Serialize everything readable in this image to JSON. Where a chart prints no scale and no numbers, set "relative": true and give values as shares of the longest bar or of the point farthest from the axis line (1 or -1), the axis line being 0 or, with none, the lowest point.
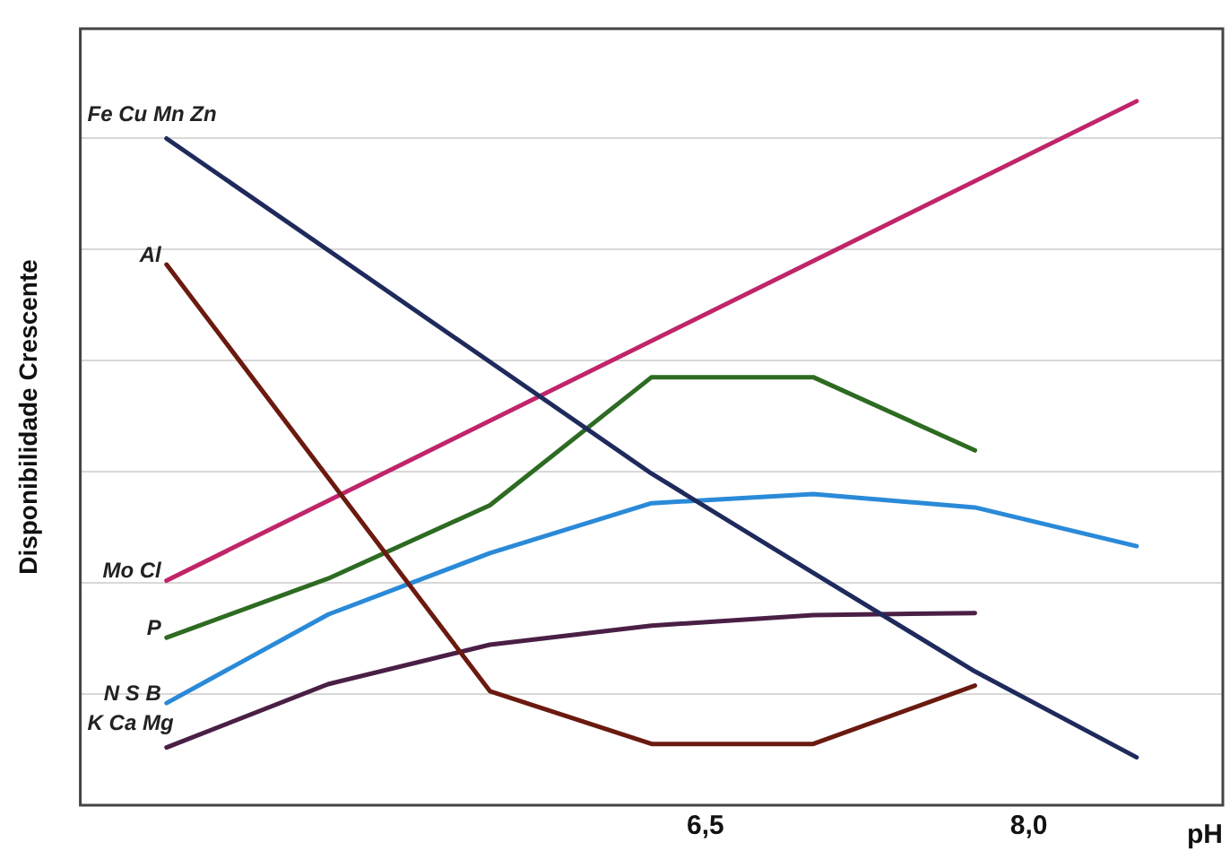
{
  "chart_data": {
    "type": "line",
    "relative": true,
    "ylabel": "Disponibilidade Crescente",
    "xlabel": "pH",
    "xlim": [
      3.6,
      8.9
    ],
    "xticks": [
      {
        "value": 6.5,
        "label": "6,5"
      },
      {
        "value": 8.0,
        "label": "8,0"
      }
    ],
    "grid": "y",
    "legend": false,
    "marker": "none",
    "line_style": "solid",
    "x": [
      4,
      4.75,
      5.5,
      6.25,
      7,
      7.75,
      8.5
    ],
    "series": [
      {
        "name": "Fe Cu Mn Zn",
        "color": "#1f2a5c",
        "x": [
          4,
          6.25,
          7,
          7.75,
          8.5
        ],
        "values": [
          0.947,
          0.471,
          0.33,
          0.19,
          0.068
        ]
      },
      {
        "name": "Al",
        "color": "#6b1a10",
        "x": [
          4,
          5.5,
          6.25,
          7,
          7.75
        ],
        "values": [
          0.768,
          0.162,
          0.087,
          0.087,
          0.17
        ]
      },
      {
        "name": "Mo Cl",
        "color": "#c0256a",
        "x": [
          4,
          8.5
        ],
        "values": [
          0.319,
          1.0
        ]
      },
      {
        "name": "P",
        "color": "#2e6b22",
        "values": [
          0.238,
          0.322,
          0.426,
          0.608,
          0.608,
          0.504,
          null
        ]
      },
      {
        "name": "N S B",
        "color": "#2a8ad8",
        "values": [
          0.145,
          0.271,
          0.358,
          0.429,
          0.442,
          0.423,
          0.368
        ]
      },
      {
        "name": "K Ca Mg",
        "color": "#4a1f45",
        "values": [
          0.082,
          0.172,
          0.228,
          0.255,
          0.27,
          0.273,
          null
        ]
      }
    ]
  }
}
